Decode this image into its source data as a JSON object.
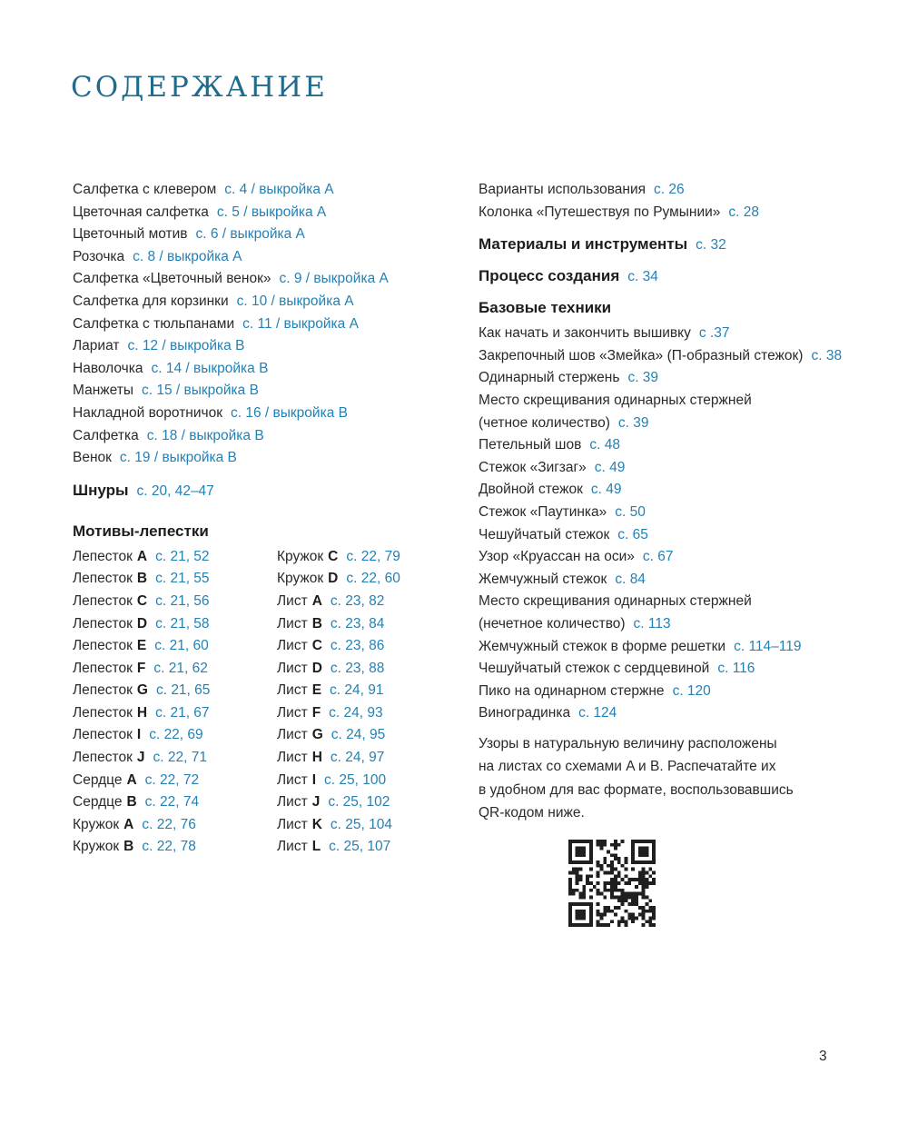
{
  "title": "СОДЕРЖАНИЕ",
  "page_number": "3",
  "colors": {
    "accent_blue": "#2481b4",
    "title_teal": "#206b8d",
    "text_dark": "#2b2a28"
  },
  "projects": [
    {
      "text": "Салфетка с клевером",
      "ref": "с. 4 / выкройка A"
    },
    {
      "text": "Цветочная салфетка",
      "ref": "с. 5 / выкройка A"
    },
    {
      "text": "Цветочный мотив",
      "ref": "с. 6 / выкройка A"
    },
    {
      "text": "Розочка",
      "ref": "с. 8 / выкройка A"
    },
    {
      "text": "Салфетка «Цветочный венок»",
      "ref": "с. 9 / выкройка A"
    },
    {
      "text": "Салфетка для корзинки",
      "ref": "с. 10 / выкройка A"
    },
    {
      "text": "Салфетка с тюльпанами",
      "ref": "с. 11 / выкройка A"
    },
    {
      "text": "Лариат",
      "ref": "с. 12 / выкройка B"
    },
    {
      "text": "Наволочка",
      "ref": "с. 14 / выкройка B"
    },
    {
      "text": "Манжеты",
      "ref": "с. 15 / выкройка B"
    },
    {
      "text": "Накладной воротничок",
      "ref": "с. 16 / выкройка B"
    },
    {
      "text": "Салфетка",
      "ref": "с. 18 / выкройка B"
    },
    {
      "text": "Венок",
      "ref": "с. 19 / выкройка B"
    }
  ],
  "shnury": {
    "label": "Шнуры",
    "ref": "с. 20, 42–47"
  },
  "motifs_header": "Мотивы-лепестки",
  "motifs_col1": [
    {
      "text": "Лепесток",
      "letter": "A",
      "ref": "с. 21, 52"
    },
    {
      "text": "Лепесток",
      "letter": "B",
      "ref": "с. 21, 55"
    },
    {
      "text": "Лепесток",
      "letter": "C",
      "ref": "с. 21, 56"
    },
    {
      "text": "Лепесток",
      "letter": "D",
      "ref": "с. 21, 58"
    },
    {
      "text": "Лепесток",
      "letter": "E",
      "ref": "с. 21, 60"
    },
    {
      "text": "Лепесток",
      "letter": "F",
      "ref": "с. 21, 62"
    },
    {
      "text": "Лепесток",
      "letter": "G",
      "ref": "с. 21, 65"
    },
    {
      "text": "Лепесток",
      "letter": "H",
      "ref": "с. 21, 67"
    },
    {
      "text": "Лепесток",
      "letter": "I",
      "ref": "с. 22, 69"
    },
    {
      "text": "Лепесток",
      "letter": "J",
      "ref": "с. 22, 71"
    },
    {
      "text": "Сердце",
      "letter": "A",
      "ref": "с. 22, 72"
    },
    {
      "text": "Сердце",
      "letter": "B",
      "ref": "с. 22, 74"
    },
    {
      "text": "Кружок",
      "letter": "A",
      "ref": "с. 22, 76"
    },
    {
      "text": "Кружок",
      "letter": "B",
      "ref": "с. 22, 78"
    }
  ],
  "motifs_col2": [
    {
      "text": "Кружок",
      "letter": "C",
      "ref": "с. 22, 79"
    },
    {
      "text": "Кружок",
      "letter": "D",
      "ref": "с. 22, 60"
    },
    {
      "text": "Лист",
      "letter": "A",
      "ref": "с. 23, 82"
    },
    {
      "text": "Лист",
      "letter": "B",
      "ref": "с. 23, 84"
    },
    {
      "text": "Лист",
      "letter": "C",
      "ref": "с. 23, 86"
    },
    {
      "text": "Лист",
      "letter": "D",
      "ref": "с. 23, 88"
    },
    {
      "text": "Лист",
      "letter": "E",
      "ref": "с. 24, 91"
    },
    {
      "text": "Лист",
      "letter": "F",
      "ref": "с. 24, 93"
    },
    {
      "text": "Лист",
      "letter": "G",
      "ref": "с. 24, 95"
    },
    {
      "text": "Лист",
      "letter": "H",
      "ref": "с. 24, 97"
    },
    {
      "text": "Лист",
      "letter": "I",
      "ref": "с. 25, 100"
    },
    {
      "text": "Лист",
      "letter": "J",
      "ref": "с. 25, 102"
    },
    {
      "text": "Лист",
      "letter": "K",
      "ref": "с. 25, 104"
    },
    {
      "text": "Лист",
      "letter": "L",
      "ref": "с. 25, 107"
    }
  ],
  "right_top": [
    {
      "text": "Варианты использования",
      "ref": "с. 26"
    },
    {
      "text": "Колонка «Путешествуя по Румынии»",
      "ref": "с. 28"
    }
  ],
  "materials": {
    "label": "Материалы и инструменты",
    "ref": "с. 32"
  },
  "process": {
    "label": "Процесс создания",
    "ref": "с. 34"
  },
  "basics_header": "Базовые техники",
  "techniques": [
    {
      "text": "Как начать и закончить вышивку",
      "ref": "с .37"
    },
    {
      "text": "Закрепочный шов «Змейка» (П-образный стежок)",
      "ref": "с. 38"
    },
    {
      "text": "Одинарный стержень",
      "ref": "с. 39"
    },
    {
      "text": "Место скрещивания одинарных стержней"
    },
    {
      "text": "(четное количество)",
      "ref": "с. 39"
    },
    {
      "text": "Петельный шов",
      "ref": "с. 48"
    },
    {
      "text": "Стежок «Зигзаг»",
      "ref": "с. 49"
    },
    {
      "text": "Двойной стежок",
      "ref": "с. 49"
    },
    {
      "text": "Стежок «Паутинка»",
      "ref": "с. 50"
    },
    {
      "text": "Чешуйчатый стежок",
      "ref": "с. 65"
    },
    {
      "text": "Узор «Круассан на оси»",
      "ref": "с. 67"
    },
    {
      "text": "Жемчужный стежок",
      "ref": "с. 84"
    },
    {
      "text": "Место скрещивания одинарных стержней"
    },
    {
      "text": "(нечетное количество)",
      "ref": "с. 113"
    },
    {
      "text": "Жемчужный стежок в форме решетки",
      "ref": "с. 114–119"
    },
    {
      "text": "Чешуйчатый стежок с сердцевиной",
      "ref": "с. 116"
    },
    {
      "text": "Пико на одинарном стержне",
      "ref": "с. 120"
    },
    {
      "text": "Виноградинка",
      "ref": "с. 124"
    }
  ],
  "note_lines": [
    "Узоры в натуральную величину расположены",
    "на листах со схемами A и B. Распечатайте их",
    "в удобном для вас формате, воспользовавшись",
    "QR-кодом ниже."
  ]
}
